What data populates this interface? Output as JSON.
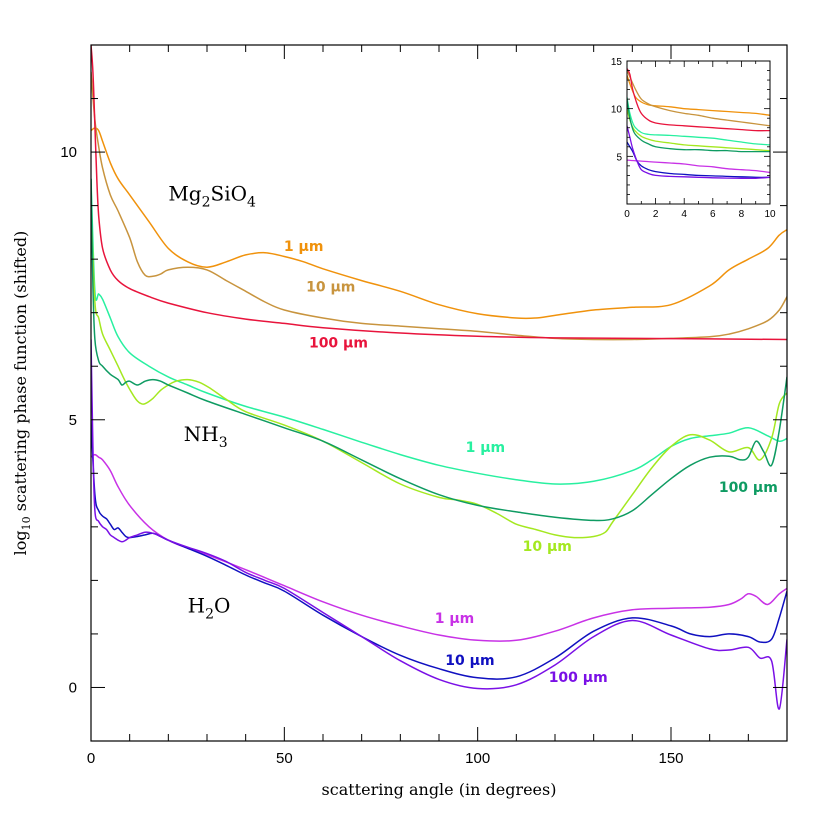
{
  "chart_data": {
    "type": "line",
    "xlabel": "scattering angle (in degrees)",
    "ylabel": "log",
    "ylabel_sub": "10",
    "ylabel_rest": " scattering phase function (shifted)",
    "xlim": [
      0,
      180
    ],
    "ylim": [
      -1,
      12
    ],
    "xticks": [
      0,
      50,
      100,
      150
    ],
    "yticks": [
      0,
      5,
      10
    ],
    "group_labels": [
      {
        "parts": [
          {
            "t": "Mg"
          },
          {
            "t": "2",
            "sub": true
          },
          {
            "t": "SiO"
          },
          {
            "t": "4",
            "sub": true
          }
        ],
        "x": 20,
        "y": 9.1
      },
      {
        "parts": [
          {
            "t": "NH"
          },
          {
            "t": "3",
            "sub": true
          }
        ],
        "x": 24,
        "y": 4.6
      },
      {
        "parts": [
          {
            "t": "H"
          },
          {
            "t": "2",
            "sub": true
          },
          {
            "t": "O"
          }
        ],
        "x": 25,
        "y": 1.4
      }
    ],
    "series": [
      {
        "name": "1 μm",
        "group": "Mg2SiO4",
        "color": "#f0920c",
        "label_x": 55,
        "label_y": 8.15,
        "x": [
          0,
          1,
          2,
          3,
          5,
          7,
          10,
          15,
          20,
          25,
          30,
          35,
          40,
          45,
          50,
          55,
          60,
          70,
          80,
          90,
          100,
          110,
          115,
          120,
          130,
          140,
          150,
          160,
          165,
          170,
          175,
          178,
          180
        ],
        "y": [
          10.4,
          10.45,
          10.4,
          10.2,
          9.8,
          9.5,
          9.2,
          8.7,
          8.2,
          7.95,
          7.85,
          7.95,
          8.08,
          8.12,
          8.05,
          7.95,
          7.82,
          7.6,
          7.4,
          7.15,
          6.98,
          6.9,
          6.9,
          6.95,
          7.05,
          7.1,
          7.15,
          7.5,
          7.8,
          8.0,
          8.2,
          8.45,
          8.55
        ]
      },
      {
        "name": "10 μm",
        "group": "Mg2SiO4",
        "color": "#c8943e",
        "label_x": 62,
        "label_y": 7.4,
        "x": [
          0,
          1,
          2,
          3,
          5,
          7,
          10,
          12,
          14,
          16,
          18,
          20,
          25,
          30,
          35,
          40,
          45,
          50,
          60,
          70,
          80,
          90,
          100,
          110,
          120,
          130,
          140,
          150,
          160,
          165,
          170,
          175,
          178,
          180
        ],
        "y": [
          11.5,
          10.6,
          10.1,
          9.7,
          9.2,
          8.9,
          8.4,
          7.95,
          7.7,
          7.68,
          7.72,
          7.8,
          7.85,
          7.8,
          7.6,
          7.4,
          7.2,
          7.05,
          6.9,
          6.8,
          6.75,
          6.7,
          6.65,
          6.58,
          6.52,
          6.5,
          6.5,
          6.52,
          6.55,
          6.6,
          6.7,
          6.85,
          7.05,
          7.3
        ]
      },
      {
        "name": "100 μm",
        "group": "Mg2SiO4",
        "color": "#e8143c",
        "label_x": 64,
        "label_y": 6.35,
        "x": [
          0,
          0.5,
          1,
          1.5,
          2,
          3,
          5,
          7,
          10,
          15,
          20,
          30,
          40,
          50,
          60,
          80,
          100,
          120,
          140,
          160,
          180
        ],
        "y": [
          12,
          11.5,
          10.5,
          9.5,
          8.8,
          8.2,
          7.8,
          7.6,
          7.45,
          7.3,
          7.18,
          7.0,
          6.88,
          6.8,
          6.72,
          6.62,
          6.56,
          6.53,
          6.52,
          6.51,
          6.5
        ]
      },
      {
        "name": "1 μm",
        "group": "NH3",
        "color": "#28f0a0",
        "label_x": 102,
        "label_y": 4.4,
        "x": [
          0,
          1,
          2,
          3,
          5,
          7,
          10,
          15,
          20,
          25,
          30,
          40,
          50,
          60,
          70,
          80,
          90,
          100,
          110,
          120,
          130,
          140,
          145,
          150,
          155,
          160,
          165,
          170,
          175,
          178,
          180
        ],
        "y": [
          9.5,
          7.4,
          7.35,
          7.25,
          6.9,
          6.55,
          6.25,
          6.0,
          5.8,
          5.65,
          5.5,
          5.25,
          5.05,
          4.82,
          4.58,
          4.35,
          4.15,
          4.0,
          3.88,
          3.8,
          3.85,
          4.05,
          4.25,
          4.5,
          4.65,
          4.7,
          4.75,
          4.85,
          4.7,
          4.6,
          4.65
        ]
      },
      {
        "name": "10 μm",
        "group": "NH3",
        "color": "#a4e820",
        "label_x": 118,
        "label_y": 2.55,
        "x": [
          0,
          1,
          2,
          3,
          5,
          7,
          9,
          11,
          12,
          13,
          14,
          16,
          18,
          20,
          22,
          25,
          28,
          31,
          35,
          40,
          50,
          60,
          70,
          80,
          90,
          95,
          100,
          105,
          110,
          115,
          120,
          125,
          130,
          133,
          135,
          140,
          145,
          150,
          155,
          160,
          165,
          170,
          173,
          176,
          178,
          180
        ],
        "y": [
          9.0,
          7.2,
          6.9,
          6.6,
          6.3,
          6.0,
          5.7,
          5.45,
          5.35,
          5.3,
          5.3,
          5.4,
          5.55,
          5.65,
          5.72,
          5.75,
          5.7,
          5.58,
          5.38,
          5.15,
          4.9,
          4.6,
          4.2,
          3.8,
          3.55,
          3.5,
          3.42,
          3.25,
          3.05,
          2.95,
          2.85,
          2.8,
          2.82,
          2.9,
          3.1,
          3.6,
          4.1,
          4.5,
          4.72,
          4.62,
          4.4,
          4.48,
          4.25,
          4.65,
          5.3,
          5.5
        ]
      },
      {
        "name": "100 μm",
        "group": "NH3",
        "color": "#0e9b62",
        "label_x": 170,
        "label_y": 3.65,
        "x": [
          0,
          0.5,
          1,
          2,
          3,
          5,
          7,
          8,
          9,
          10,
          12,
          14,
          16,
          18,
          20,
          25,
          30,
          40,
          50,
          60,
          70,
          80,
          90,
          100,
          110,
          120,
          130,
          135,
          140,
          145,
          150,
          155,
          160,
          165,
          168,
          170,
          172,
          174,
          176,
          178,
          180
        ],
        "y": [
          9.5,
          7.5,
          6.5,
          6.1,
          6.0,
          5.85,
          5.75,
          5.65,
          5.7,
          5.72,
          5.65,
          5.72,
          5.75,
          5.72,
          5.65,
          5.5,
          5.35,
          5.1,
          4.85,
          4.6,
          4.25,
          3.9,
          3.6,
          3.4,
          3.28,
          3.18,
          3.12,
          3.15,
          3.3,
          3.6,
          3.9,
          4.15,
          4.3,
          4.32,
          4.25,
          4.3,
          4.6,
          4.4,
          4.15,
          4.8,
          5.8
        ]
      },
      {
        "name": "1 μm",
        "group": "H2O",
        "color": "#c832e6",
        "label_x": 94,
        "label_y": 1.2,
        "x": [
          0,
          1,
          2,
          3,
          5,
          7,
          10,
          15,
          20,
          25,
          30,
          40,
          50,
          60,
          70,
          80,
          90,
          100,
          110,
          120,
          130,
          140,
          150,
          160,
          165,
          168,
          170,
          172,
          175,
          178,
          180
        ],
        "y": [
          4.3,
          4.35,
          4.3,
          4.25,
          4.05,
          3.75,
          3.4,
          3.0,
          2.75,
          2.6,
          2.48,
          2.2,
          1.9,
          1.6,
          1.35,
          1.15,
          0.98,
          0.88,
          0.88,
          1.05,
          1.3,
          1.45,
          1.48,
          1.5,
          1.55,
          1.65,
          1.75,
          1.7,
          1.55,
          1.75,
          1.85
        ]
      },
      {
        "name": "10 μm",
        "group": "H2O",
        "color": "#1010c0",
        "label_x": 98,
        "label_y": 0.42,
        "x": [
          0,
          1,
          2,
          3,
          4,
          5,
          6,
          7,
          8,
          9,
          10,
          12,
          14,
          16,
          18,
          20,
          25,
          30,
          35,
          40,
          45,
          50,
          60,
          70,
          80,
          90,
          100,
          110,
          120,
          130,
          140,
          150,
          155,
          160,
          165,
          170,
          173,
          176,
          178,
          180
        ],
        "y": [
          5.0,
          3.6,
          3.3,
          3.2,
          3.15,
          3.05,
          2.95,
          2.98,
          2.9,
          2.82,
          2.8,
          2.82,
          2.85,
          2.88,
          2.82,
          2.75,
          2.6,
          2.45,
          2.28,
          2.1,
          1.95,
          1.8,
          1.35,
          0.95,
          0.6,
          0.35,
          0.18,
          0.2,
          0.55,
          1.05,
          1.3,
          1.15,
          1.0,
          0.95,
          1.0,
          0.95,
          0.85,
          0.9,
          1.3,
          1.8
        ]
      },
      {
        "name": "100 μm",
        "group": "H2O",
        "color": "#7a10e6",
        "label_x": 126,
        "label_y": 0.1,
        "x": [
          0,
          0.5,
          1,
          2,
          3,
          4,
          5,
          6,
          7,
          8,
          9,
          10,
          12,
          14,
          16,
          18,
          20,
          25,
          30,
          35,
          40,
          45,
          50,
          60,
          70,
          80,
          90,
          100,
          110,
          120,
          130,
          140,
          150,
          160,
          165,
          170,
          173,
          176,
          178,
          180
        ],
        "y": [
          6.5,
          4.5,
          3.3,
          3.1,
          3.0,
          2.95,
          2.85,
          2.8,
          2.75,
          2.72,
          2.75,
          2.8,
          2.85,
          2.9,
          2.88,
          2.82,
          2.75,
          2.62,
          2.5,
          2.35,
          2.15,
          2.0,
          1.85,
          1.4,
          0.95,
          0.5,
          0.15,
          -0.02,
          0.05,
          0.42,
          0.95,
          1.25,
          0.98,
          0.72,
          0.7,
          0.75,
          0.55,
          0.5,
          -0.4,
          0.9
        ]
      }
    ],
    "inset": {
      "xlim": [
        0,
        10
      ],
      "ylim": [
        0,
        15
      ],
      "xticks": [
        0,
        2,
        4,
        6,
        8,
        10
      ],
      "yticks": [
        5,
        10,
        15
      ],
      "series": [
        {
          "color": "#f0920c",
          "x": [
            0,
            0.3,
            0.6,
            1,
            1.5,
            2,
            3,
            4,
            5,
            6,
            7,
            8,
            9,
            10
          ],
          "y": [
            13.5,
            12.2,
            11.2,
            10.7,
            10.4,
            10.3,
            10.2,
            10.0,
            9.9,
            9.8,
            9.7,
            9.6,
            9.5,
            9.3
          ]
        },
        {
          "color": "#c8943e",
          "x": [
            0,
            0.3,
            0.6,
            1,
            1.5,
            2,
            3,
            4,
            5,
            6,
            7,
            8,
            9,
            10
          ],
          "y": [
            14.0,
            13.0,
            12.0,
            11.0,
            10.5,
            10.2,
            9.8,
            9.5,
            9.3,
            9.0,
            8.8,
            8.6,
            8.4,
            8.2
          ]
        },
        {
          "color": "#e8143c",
          "x": [
            0,
            0.2,
            0.4,
            0.7,
            1,
            1.5,
            2,
            3,
            4,
            5,
            6,
            7,
            8,
            9,
            10
          ],
          "y": [
            14.2,
            13.6,
            12.0,
            10.5,
            9.5,
            8.8,
            8.5,
            8.3,
            8.2,
            8.1,
            8.0,
            7.9,
            7.8,
            7.7,
            7.7
          ]
        },
        {
          "color": "#28f0a0",
          "x": [
            0,
            0.2,
            0.5,
            1,
            1.5,
            2,
            3,
            4,
            5,
            6,
            7,
            8,
            9,
            10
          ],
          "y": [
            11.2,
            9.5,
            8.2,
            7.5,
            7.3,
            7.25,
            7.2,
            7.1,
            7.0,
            6.9,
            6.7,
            6.5,
            6.3,
            6.2
          ]
        },
        {
          "color": "#a4e820",
          "x": [
            0,
            0.2,
            0.5,
            1,
            1.5,
            2,
            3,
            4,
            5,
            6,
            7,
            8,
            9,
            10
          ],
          "y": [
            10.0,
            8.8,
            7.8,
            7.1,
            6.8,
            6.6,
            6.4,
            6.2,
            6.1,
            6.0,
            5.9,
            5.8,
            5.7,
            5.6
          ]
        },
        {
          "color": "#0e9b62",
          "x": [
            0,
            0.2,
            0.5,
            1,
            1.5,
            2,
            3,
            4,
            5,
            6,
            7,
            8,
            9,
            10
          ],
          "y": [
            11.0,
            9.0,
            7.5,
            6.7,
            6.3,
            6.0,
            5.8,
            5.7,
            5.7,
            5.6,
            5.6,
            5.5,
            5.5,
            5.5
          ]
        },
        {
          "color": "#c832e6",
          "x": [
            0,
            0.5,
            1,
            1.5,
            2,
            3,
            4,
            5,
            6,
            7,
            8,
            9,
            10
          ],
          "y": [
            4.6,
            4.55,
            4.5,
            4.45,
            4.4,
            4.3,
            4.2,
            4.0,
            3.9,
            3.7,
            3.6,
            3.5,
            3.3
          ]
        },
        {
          "color": "#1010c0",
          "x": [
            0,
            0.2,
            0.4,
            0.7,
            1,
            1.5,
            2,
            3,
            4,
            5,
            6,
            7,
            8,
            9,
            10
          ],
          "y": [
            6.5,
            6.0,
            5.5,
            4.5,
            4.0,
            3.6,
            3.4,
            3.2,
            3.1,
            3.0,
            2.95,
            2.9,
            2.85,
            2.8,
            2.8
          ]
        },
        {
          "color": "#7a10e6",
          "x": [
            0,
            0.2,
            0.4,
            0.7,
            1,
            1.5,
            2,
            3,
            4,
            5,
            6,
            7,
            8,
            9,
            10
          ],
          "y": [
            8.2,
            7.0,
            5.8,
            4.5,
            3.6,
            3.2,
            3.0,
            2.9,
            2.85,
            2.8,
            2.75,
            2.72,
            2.7,
            2.7,
            2.8
          ]
        }
      ]
    }
  }
}
